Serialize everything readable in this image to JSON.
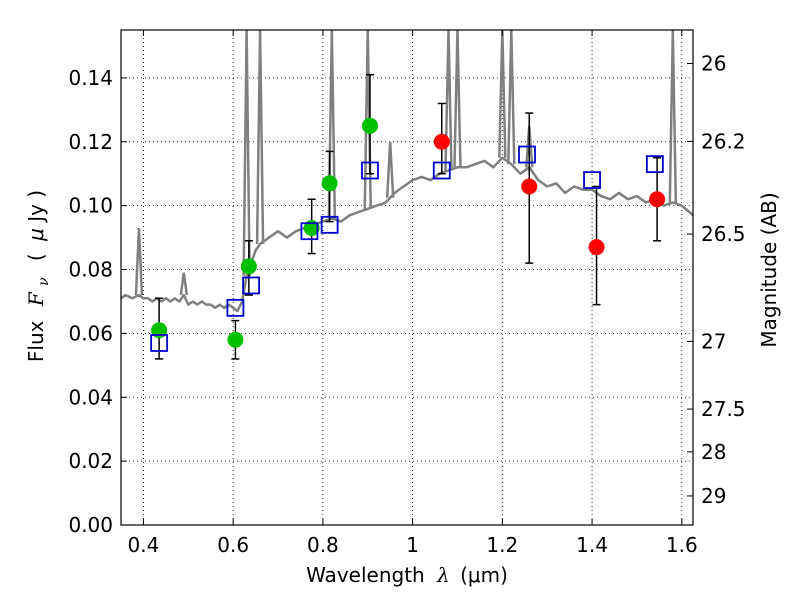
{
  "chart_data": {
    "type": "scatter",
    "xlabel": {
      "prefix": "Wavelength",
      "symbol": "λ",
      "unit": "(μm)"
    },
    "ylabel": {
      "prefix": "Flux",
      "symbol": "F",
      "subscript": "ν",
      "unit_open": "(",
      "unit_mu": "μ",
      "unit_rest": "Jy )"
    },
    "y2label": "Magnitude (AB)",
    "xlim": [
      0.35,
      1.625
    ],
    "ylim": [
      0.0,
      0.155
    ],
    "grid": true,
    "x_ticks": [
      0.4,
      0.6,
      0.8,
      1.0,
      1.2,
      1.4,
      1.6
    ],
    "x_tick_labels": [
      "0.4",
      "0.6",
      "0.8",
      "1",
      "1.2",
      "1.4",
      "1.6"
    ],
    "y_ticks": [
      0.0,
      0.02,
      0.04,
      0.06,
      0.08,
      0.1,
      0.12,
      0.14
    ],
    "y_tick_labels": [
      "0.00",
      "0.02",
      "0.04",
      "0.06",
      "0.08",
      "0.10",
      "0.12",
      "0.14"
    ],
    "y2_ticks": [
      {
        "label": "26",
        "flux": 0.1445
      },
      {
        "label": "26.2",
        "flux": 0.1201
      },
      {
        "label": "26.5",
        "flux": 0.0911
      },
      {
        "label": "27",
        "flux": 0.0575
      },
      {
        "label": "27.5",
        "flux": 0.0363
      },
      {
        "label": "28",
        "flux": 0.0229
      },
      {
        "label": "29",
        "flux": 0.0091
      }
    ],
    "series": [
      {
        "marker": "circle",
        "color": "#00c000",
        "x": [
          0.435,
          0.605,
          0.635,
          0.775,
          0.815,
          0.905
        ],
        "y": [
          0.061,
          0.058,
          0.081,
          0.093,
          0.107,
          0.125
        ],
        "yerr_low": [
          0.052,
          0.052,
          0.072,
          0.085,
          0.095,
          0.11
        ],
        "yerr_high": [
          0.071,
          0.064,
          0.089,
          0.102,
          0.117,
          0.141
        ]
      },
      {
        "marker": "circle",
        "color": "#ff0000",
        "x": [
          1.065,
          1.26,
          1.41,
          1.545
        ],
        "y": [
          0.12,
          0.106,
          0.087,
          0.102
        ],
        "yerr_low": [
          0.11,
          0.082,
          0.069,
          0.089
        ],
        "yerr_high": [
          0.132,
          0.129,
          0.106,
          0.115
        ]
      },
      {
        "marker": "open-square",
        "color": "#0000cc",
        "x": [
          0.435,
          0.605,
          0.64,
          0.77,
          0.815,
          0.905,
          1.065,
          1.255,
          1.4,
          1.54
        ],
        "y": [
          0.057,
          0.068,
          0.075,
          0.092,
          0.094,
          0.111,
          0.111,
          0.116,
          0.108,
          0.113
        ]
      },
      {
        "marker": "line",
        "color": "#808080",
        "x": [
          0.35,
          0.36,
          0.375,
          0.39,
          0.4,
          0.41,
          0.42,
          0.43,
          0.44,
          0.45,
          0.46,
          0.47,
          0.48,
          0.49,
          0.5,
          0.51,
          0.52,
          0.53,
          0.54,
          0.55,
          0.56,
          0.57,
          0.58,
          0.59,
          0.6,
          0.61,
          0.62,
          0.63,
          0.64,
          0.65,
          0.66,
          0.68,
          0.7,
          0.72,
          0.74,
          0.76,
          0.78,
          0.8,
          0.82,
          0.84,
          0.86,
          0.88,
          0.9,
          0.92,
          0.94,
          0.96,
          0.98,
          1.0,
          1.02,
          1.04,
          1.06,
          1.08,
          1.1,
          1.12,
          1.14,
          1.16,
          1.18,
          1.2,
          1.22,
          1.24,
          1.26,
          1.28,
          1.3,
          1.32,
          1.34,
          1.36,
          1.38,
          1.4,
          1.42,
          1.44,
          1.46,
          1.48,
          1.5,
          1.52,
          1.54,
          1.56,
          1.58,
          1.6,
          1.625
        ],
        "y": [
          0.071,
          0.072,
          0.071,
          0.072,
          0.071,
          0.071,
          0.07,
          0.071,
          0.07,
          0.071,
          0.07,
          0.071,
          0.07,
          0.072,
          0.069,
          0.07,
          0.069,
          0.07,
          0.069,
          0.069,
          0.068,
          0.069,
          0.068,
          0.069,
          0.068,
          0.067,
          0.07,
          0.078,
          0.082,
          0.086,
          0.088,
          0.09,
          0.092,
          0.09,
          0.092,
          0.093,
          0.094,
          0.095,
          0.096,
          0.095,
          0.097,
          0.098,
          0.099,
          0.1,
          0.101,
          0.104,
          0.106,
          0.108,
          0.109,
          0.108,
          0.11,
          0.111,
          0.112,
          0.112,
          0.113,
          0.114,
          0.112,
          0.115,
          0.113,
          0.11,
          0.112,
          0.108,
          0.106,
          0.107,
          0.104,
          0.106,
          0.105,
          0.105,
          0.103,
          0.102,
          0.104,
          0.102,
          0.103,
          0.101,
          0.102,
          0.1,
          0.101,
          0.1,
          0.097
        ]
      },
      {
        "marker": "emission-lines",
        "color": "#808080",
        "x": [
          0.39,
          0.49,
          0.63,
          0.66,
          0.82,
          0.9,
          0.95,
          1.08,
          1.1,
          1.2,
          1.22,
          1.26,
          1.58
        ],
        "y": [
          0.093,
          0.079,
          0.155,
          0.155,
          0.155,
          0.155,
          0.12,
          0.155,
          0.155,
          0.155,
          0.155,
          0.125,
          0.155
        ]
      }
    ]
  }
}
